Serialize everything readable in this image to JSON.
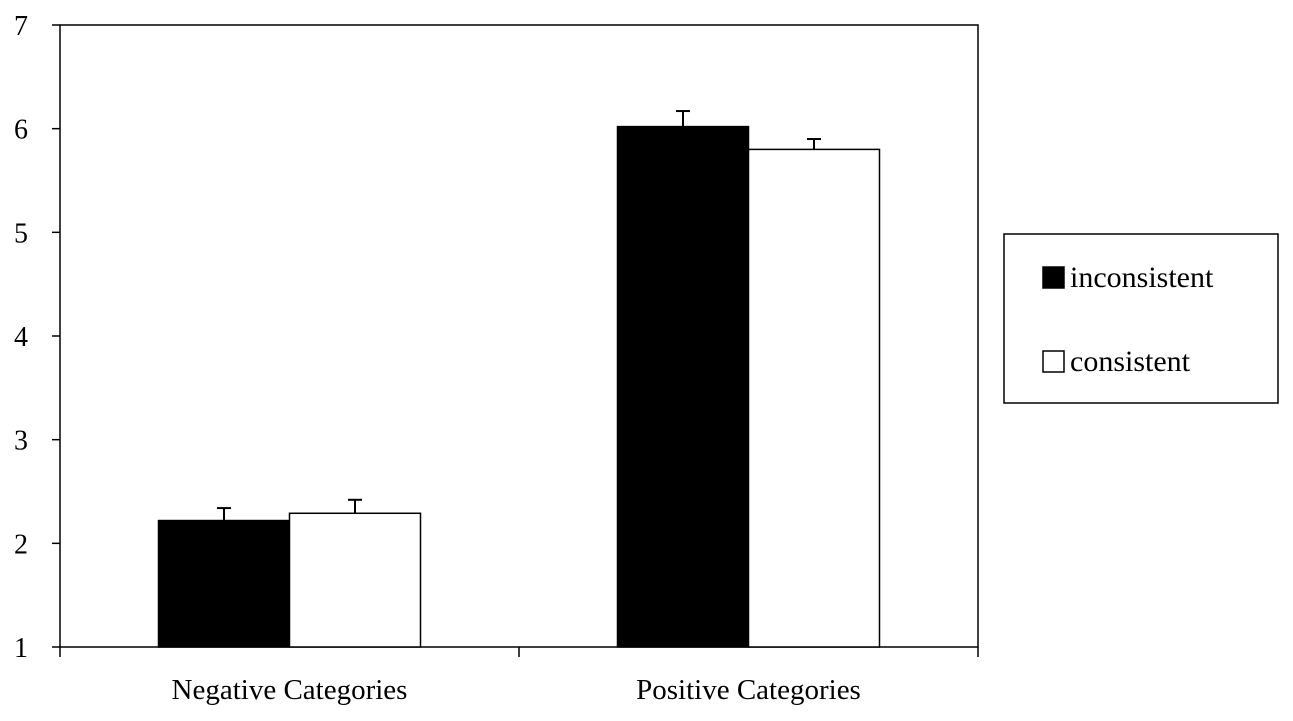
{
  "chart_data": {
    "type": "bar",
    "title": "",
    "xlabel": "",
    "ylabel": "",
    "categories": [
      "Negative Categories",
      "Positive Categories"
    ],
    "series": [
      {
        "name": "inconsistent",
        "values": [
          2.22,
          6.02
        ],
        "errors": [
          0.12,
          0.15
        ],
        "color": "#000000"
      },
      {
        "name": "consistent",
        "values": [
          2.29,
          5.8
        ],
        "errors": [
          0.13,
          0.1
        ],
        "color": "#ffffff"
      }
    ],
    "ylim": [
      1,
      7
    ],
    "yticks": [
      "1",
      "2",
      "3",
      "4",
      "5",
      "6",
      "7"
    ],
    "grid": false,
    "legend_position": "right"
  }
}
